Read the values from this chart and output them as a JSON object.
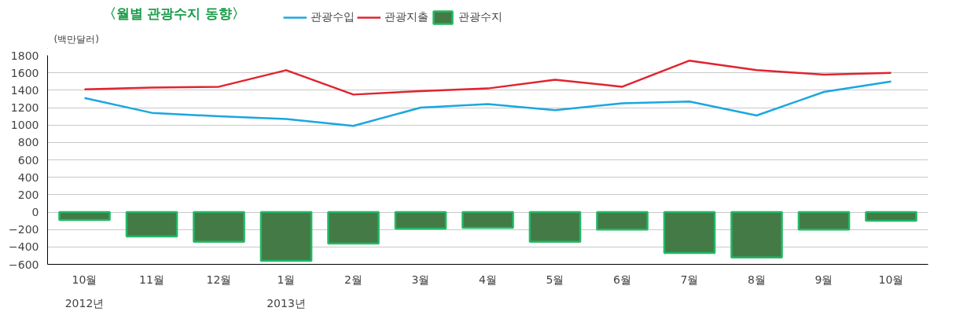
{
  "chart_data": {
    "type": "bar",
    "title": "〈월별 관광수지 동향〉",
    "ylabel": "(백만달러)",
    "categories": [
      "10월\n2012년",
      "11월",
      "12월",
      "1월\n2013년",
      "2월",
      "3월",
      "4월",
      "5월",
      "6월",
      "7월",
      "8월",
      "9월",
      "10월"
    ],
    "series": [
      {
        "name": "관광수입",
        "type": "line",
        "color": "#1aa7e0",
        "values": [
          1310,
          1140,
          1100,
          1070,
          990,
          1200,
          1240,
          1170,
          1250,
          1270,
          1110,
          1380,
          1500
        ]
      },
      {
        "name": "관광지출",
        "type": "line",
        "color": "#e0242f",
        "values": [
          1410,
          1430,
          1440,
          1630,
          1350,
          1390,
          1420,
          1520,
          1440,
          1740,
          1630,
          1580,
          1600
        ]
      },
      {
        "name": "관광수지",
        "color": "#437a45",
        "values": [
          -90,
          -280,
          -340,
          -560,
          -360,
          -190,
          -180,
          -340,
          -200,
          -470,
          -520,
          -200,
          -100
        ]
      }
    ],
    "ylim": [
      -600,
      1800
    ],
    "yticks": [
      -600,
      -400,
      -200,
      0,
      200,
      400,
      600,
      800,
      1000,
      1200,
      1400,
      1600,
      1800
    ],
    "grid": "y",
    "legend": "top"
  }
}
